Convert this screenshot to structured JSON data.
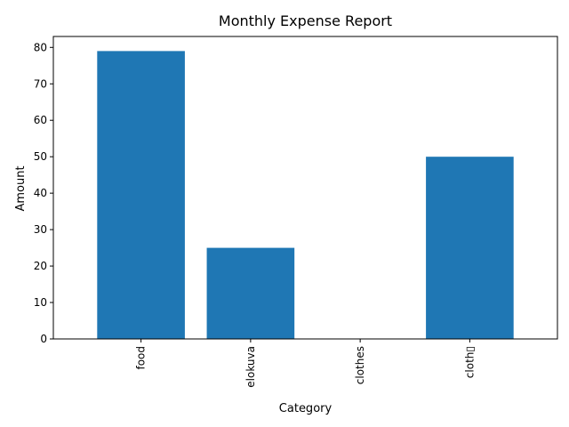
{
  "chart_data": {
    "type": "bar",
    "title": "Monthly Expense Report",
    "xlabel": "Category",
    "ylabel": "Amount",
    "categories": [
      "food",
      "elokuva",
      "clothes",
      "cloth▯"
    ],
    "values": [
      79,
      25,
      0,
      50
    ],
    "ylim": [
      0,
      83
    ],
    "yticks": [
      0,
      10,
      20,
      30,
      40,
      50,
      60,
      70,
      80
    ],
    "bar_color": "#1f77b4",
    "grid": false
  }
}
